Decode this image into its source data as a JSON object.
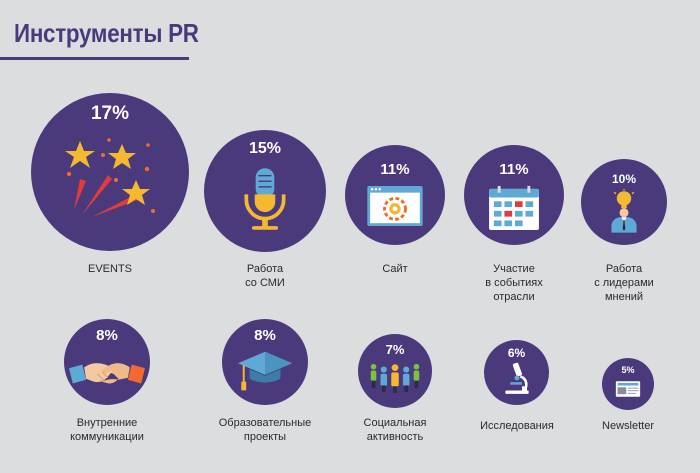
{
  "title": "Инструменты PR",
  "colors": {
    "background": "#dcdddf",
    "circle": "#4a3a7c",
    "title": "#4a3a7c",
    "label": "#2b2b2b",
    "accent_yellow": "#f5b931",
    "accent_orange": "#f26a2e",
    "accent_red": "#e23b3b"
  },
  "tools": [
    {
      "percent": "17%",
      "label": [
        "EVENTS"
      ],
      "icon": "stars-fireworks-icon"
    },
    {
      "percent": "15%",
      "label": [
        "Работа",
        "со СМИ"
      ],
      "icon": "microphone-icon"
    },
    {
      "percent": "11%",
      "label": [
        "Сайт"
      ],
      "icon": "website-gear-icon"
    },
    {
      "percent": "11%",
      "label": [
        "Участие",
        "в событиях",
        "отрасли"
      ],
      "icon": "calendar-icon"
    },
    {
      "percent": "10%",
      "label": [
        "Работа",
        "с лидерами",
        "мнений"
      ],
      "icon": "leader-lightbulb-icon"
    },
    {
      "percent": "8%",
      "label": [
        "Внутренние",
        "коммуникации"
      ],
      "icon": "handshake-icon"
    },
    {
      "percent": "8%",
      "label": [
        "Образовательные",
        "проекты"
      ],
      "icon": "graduation-cap-icon"
    },
    {
      "percent": "7%",
      "label": [
        "Социальная",
        "активность"
      ],
      "icon": "people-group-icon"
    },
    {
      "percent": "6%",
      "label": [
        "Исследования"
      ],
      "icon": "microscope-icon"
    },
    {
      "percent": "5%",
      "label": [
        "Newsletter"
      ],
      "icon": "newsletter-icon"
    }
  ]
}
